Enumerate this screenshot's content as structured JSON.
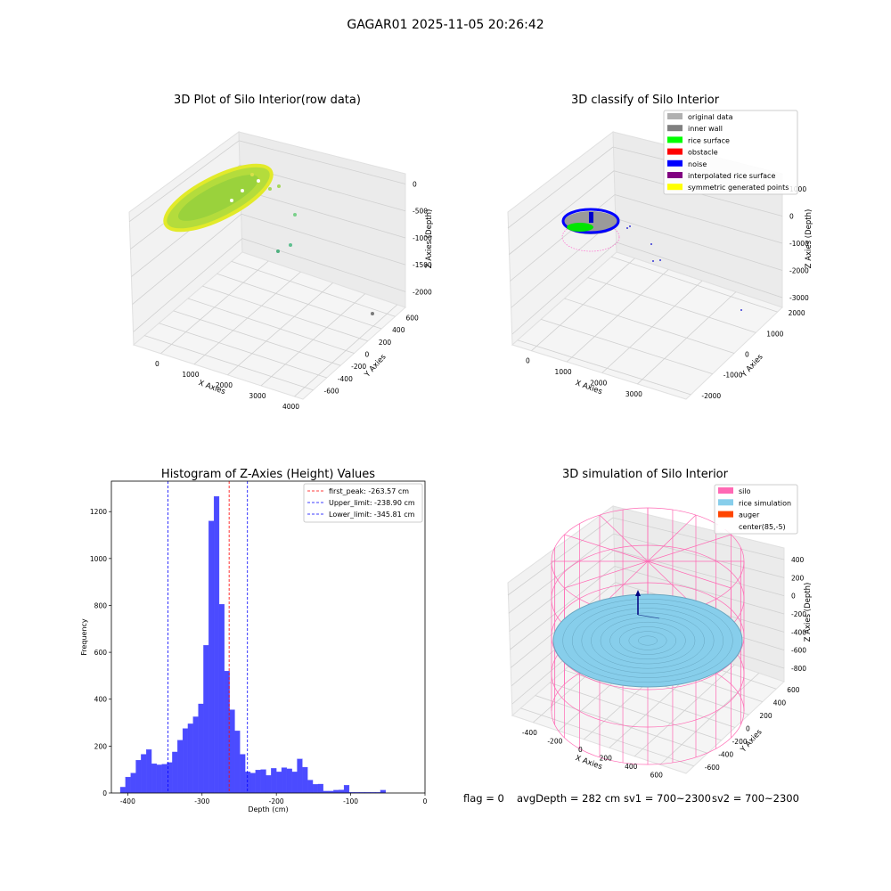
{
  "suptitle": "GAGAR01 2025-11-05 20:26:42",
  "colors": {
    "hist_bar": "#4b4bff",
    "hist_edge": "#0000ff",
    "peak_line": "#ff0000",
    "limit_line": "#0000ff",
    "pane": "#f2f2f2",
    "grid": "#d0d0d0",
    "silo": "#ff69b4",
    "rice": "#87ceeb",
    "auger": "#ff4500",
    "cloud_light": "#d2e63c",
    "cloud_dark": "#9ad23c",
    "noise": "#0000cd"
  },
  "footer": {
    "flag": "flag = 0",
    "avg_depth": "avgDepth = 282 cm",
    "sv1": "sv1 = 700~2300",
    "sv2": "sv2 = 700~2300"
  },
  "chart_data": [
    {
      "type": "scatter",
      "projection": "3d",
      "title": "3D Plot of Silo Interior(row data)",
      "xlabel": "X Axies",
      "ylabel": "Y Axies",
      "zlabel": "Z Axies (Depth)",
      "x_ticks": [
        "0",
        "1000",
        "2000",
        "3000",
        "4000"
      ],
      "y_ticks": [
        "-600",
        "-400",
        "-200",
        "0",
        "200",
        "400",
        "600"
      ],
      "z_ticks": [
        "0",
        "-500",
        "-1000",
        "-1500",
        "-2000"
      ],
      "grid": true,
      "series": [
        {
          "name": "",
          "description_color": "yellow-green colormap by depth"
        }
      ]
    },
    {
      "type": "scatter",
      "projection": "3d",
      "title": "3D classify of Silo Interior",
      "xlabel": "X Axies",
      "ylabel": "Y Axies",
      "zlabel": "Z Axies (Depth)",
      "x_ticks": [
        "0",
        "1000",
        "2000",
        "3000"
      ],
      "y_ticks": [
        "-2000",
        "-1000",
        "0",
        "1000",
        "2000"
      ],
      "z_ticks": [
        "1000",
        "0",
        "-1000",
        "-2000",
        "-3000"
      ],
      "grid": true,
      "legend_position": "top-right",
      "legend": [
        {
          "label": "original data",
          "color": "#b0b0b0"
        },
        {
          "label": "inner wall",
          "color": "#808080"
        },
        {
          "label": "rice surface",
          "color": "#00ff00"
        },
        {
          "label": "obstacle",
          "color": "#ff0000"
        },
        {
          "label": "noise",
          "color": "#0000ff"
        },
        {
          "label": "interpolated rice surface",
          "color": "#800080"
        },
        {
          "label": "symmetric generated points",
          "color": "#ffff00"
        }
      ]
    },
    {
      "type": "bar",
      "title": "Histogram of Z-Axies (Height) Values",
      "xlabel": "Depth (cm)",
      "ylabel": "Frequency",
      "xlim": [
        -422,
        0
      ],
      "ylim": [
        0,
        1330
      ],
      "x_ticks": [
        -400,
        -300,
        -200,
        -100,
        0
      ],
      "y_ticks": [
        0,
        200,
        400,
        600,
        800,
        1000,
        1200
      ],
      "bin_width": 7,
      "bin_start": -410,
      "values": [
        25,
        68,
        85,
        140,
        165,
        185,
        125,
        120,
        123,
        130,
        175,
        225,
        275,
        295,
        325,
        380,
        630,
        1160,
        1265,
        805,
        520,
        355,
        265,
        165,
        90,
        85,
        98,
        100,
        75,
        105,
        90,
        108,
        103,
        90,
        145,
        110,
        55,
        37,
        38,
        8,
        8,
        12,
        13,
        33,
        3,
        3,
        3,
        3,
        3,
        3,
        12
      ],
      "lines": [
        {
          "label": "first_peak: -263.57 cm",
          "x": -263.57,
          "color": "#ff0000"
        },
        {
          "label": "Upper_limit: -238.90 cm",
          "x": -238.9,
          "color": "#0000ff"
        },
        {
          "label": "Lower_limit: -345.81 cm",
          "x": -345.81,
          "color": "#0000ff"
        }
      ],
      "legend_position": "top-right"
    },
    {
      "type": "scatter",
      "projection": "3d",
      "title": "3D simulation of Silo Interior",
      "xlabel": "X Axies",
      "ylabel": "Y Axies",
      "zlabel": "Z Axies (Depth)",
      "x_ticks": [
        "-400",
        "-200",
        "0",
        "200",
        "400",
        "600"
      ],
      "y_ticks": [
        "-600",
        "-400",
        "-200",
        "0",
        "200",
        "400",
        "600"
      ],
      "z_ticks": [
        "400",
        "200",
        "0",
        "-200",
        "-400",
        "-600",
        "-800"
      ],
      "grid": true,
      "legend_position": "top-right",
      "legend": [
        {
          "label": "silo",
          "color": "#ff69b4"
        },
        {
          "label": "rice simulation",
          "color": "#87ceeb"
        },
        {
          "label": "auger",
          "color": "#ff4500"
        },
        {
          "label": "center(85,-5)",
          "color": "#ffffff"
        }
      ]
    }
  ]
}
